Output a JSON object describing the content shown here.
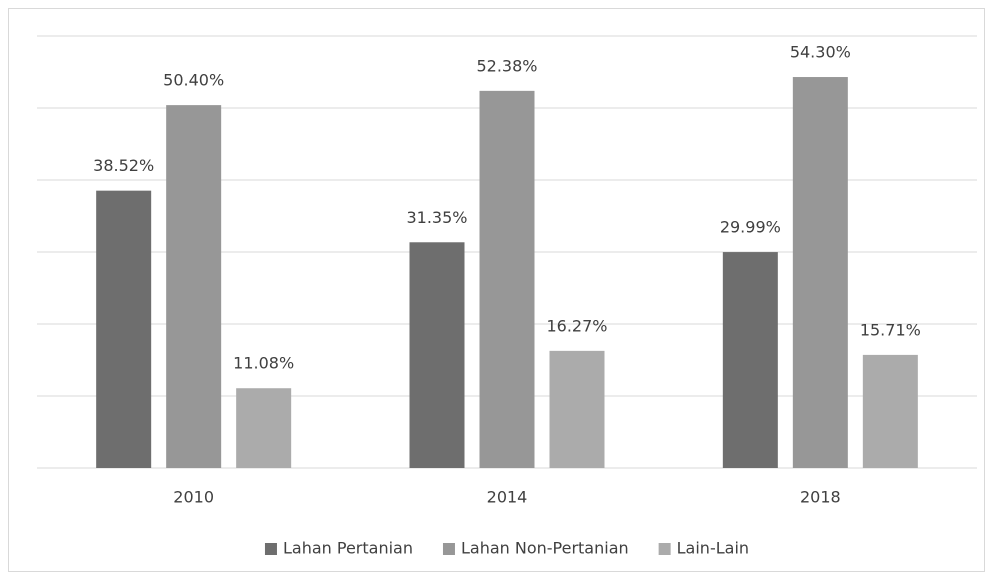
{
  "chart_data": {
    "type": "bar",
    "categories": [
      "2010",
      "2014",
      "2018"
    ],
    "series": [
      {
        "name": "Lahan Pertanian",
        "color": "#6e6e6e",
        "values": [
          38.52,
          31.35,
          29.99
        ],
        "value_labels": [
          "38.52%",
          "31.35%",
          "29.99%"
        ]
      },
      {
        "name": "Lahan Non-Pertanian",
        "color": "#979797",
        "values": [
          50.4,
          52.38,
          54.3
        ],
        "value_labels": [
          "50.40%",
          "52.38%",
          "54.30%"
        ]
      },
      {
        "name": "Lain-Lain",
        "color": "#ababab",
        "values": [
          11.08,
          16.27,
          15.71
        ],
        "value_labels": [
          "11.08%",
          "16.27%",
          "15.71%"
        ]
      }
    ],
    "ylim": [
      0,
      60
    ],
    "yticks": [
      0,
      10,
      20,
      30,
      40,
      50,
      60
    ],
    "grid": true,
    "legend": "bottom"
  }
}
